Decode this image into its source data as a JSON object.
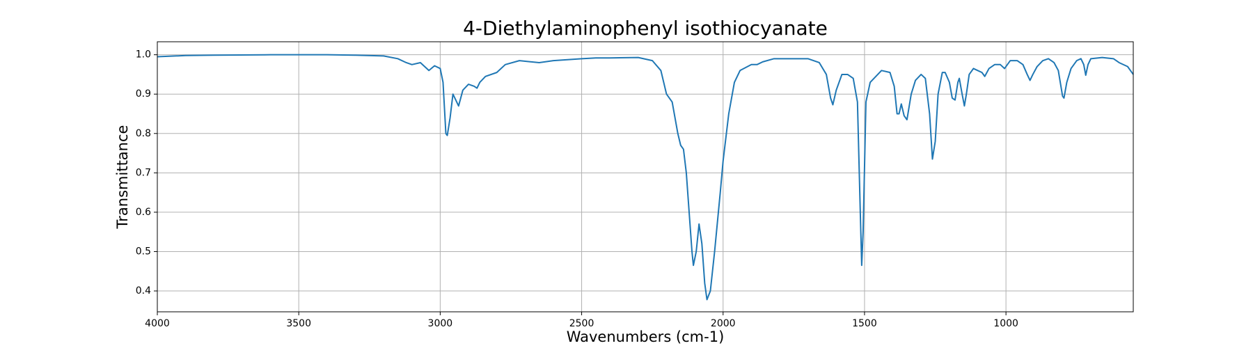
{
  "chart_data": {
    "type": "line",
    "title": "4-Diethylaminophenyl isothiocyanate",
    "xlabel": "Wavenumbers (cm-1)",
    "ylabel": "Transmittance",
    "color": "#1f77b4",
    "grid": true,
    "xlim": [
      4000,
      550
    ],
    "ylim": [
      0.347,
      1.033
    ],
    "xticks": [
      4000,
      3500,
      3000,
      2500,
      2000,
      1500,
      1000
    ],
    "yticks": [
      0.4,
      0.5,
      0.6,
      0.7,
      0.8,
      0.9,
      {
        "value": 1,
        "label": "1.0"
      }
    ],
    "x": [
      4000,
      3900,
      3800,
      3600,
      3400,
      3300,
      3200,
      3150,
      3120,
      3100,
      3070,
      3055,
      3040,
      3020,
      3000,
      2990,
      2980,
      2975,
      2965,
      2955,
      2945,
      2935,
      2920,
      2900,
      2880,
      2870,
      2860,
      2840,
      2800,
      2770,
      2720,
      2650,
      2600,
      2500,
      2450,
      2400,
      2300,
      2250,
      2220,
      2200,
      2180,
      2160,
      2150,
      2140,
      2130,
      2120,
      2110,
      2105,
      2095,
      2085,
      2075,
      2065,
      2057,
      2045,
      2030,
      2010,
      2000,
      1980,
      1960,
      1940,
      1900,
      1880,
      1860,
      1820,
      1750,
      1700,
      1660,
      1635,
      1620,
      1612,
      1600,
      1580,
      1560,
      1540,
      1525,
      1515,
      1510,
      1505,
      1495,
      1480,
      1460,
      1440,
      1410,
      1395,
      1385,
      1378,
      1370,
      1360,
      1350,
      1335,
      1320,
      1300,
      1285,
      1270,
      1260,
      1250,
      1240,
      1225,
      1215,
      1200,
      1190,
      1180,
      1170,
      1165,
      1155,
      1147,
      1140,
      1130,
      1115,
      1100,
      1085,
      1075,
      1060,
      1040,
      1020,
      1005,
      995,
      985,
      960,
      940,
      925,
      915,
      905,
      890,
      870,
      850,
      830,
      815,
      800,
      795,
      785,
      770,
      750,
      735,
      725,
      718,
      710,
      700,
      660,
      620,
      600,
      570,
      550
    ],
    "values": [
      0.995,
      0.998,
      0.999,
      1.0,
      1.0,
      0.999,
      0.997,
      0.99,
      0.98,
      0.975,
      0.98,
      0.97,
      0.96,
      0.972,
      0.965,
      0.93,
      0.8,
      0.795,
      0.84,
      0.9,
      0.885,
      0.87,
      0.91,
      0.925,
      0.92,
      0.915,
      0.93,
      0.945,
      0.955,
      0.975,
      0.985,
      0.98,
      0.985,
      0.99,
      0.992,
      0.992,
      0.993,
      0.985,
      0.96,
      0.9,
      0.88,
      0.8,
      0.77,
      0.76,
      0.7,
      0.6,
      0.5,
      0.465,
      0.5,
      0.57,
      0.52,
      0.42,
      0.378,
      0.4,
      0.5,
      0.65,
      0.73,
      0.85,
      0.93,
      0.96,
      0.975,
      0.975,
      0.982,
      0.99,
      0.99,
      0.99,
      0.98,
      0.95,
      0.89,
      0.873,
      0.91,
      0.95,
      0.95,
      0.94,
      0.88,
      0.6,
      0.465,
      0.55,
      0.88,
      0.93,
      0.945,
      0.96,
      0.955,
      0.92,
      0.85,
      0.85,
      0.875,
      0.845,
      0.835,
      0.9,
      0.935,
      0.95,
      0.94,
      0.85,
      0.735,
      0.78,
      0.9,
      0.955,
      0.955,
      0.93,
      0.89,
      0.885,
      0.93,
      0.94,
      0.9,
      0.87,
      0.9,
      0.95,
      0.965,
      0.96,
      0.955,
      0.945,
      0.965,
      0.975,
      0.975,
      0.965,
      0.975,
      0.985,
      0.985,
      0.975,
      0.95,
      0.935,
      0.95,
      0.97,
      0.985,
      0.99,
      0.98,
      0.96,
      0.895,
      0.89,
      0.93,
      0.965,
      0.985,
      0.99,
      0.975,
      0.948,
      0.975,
      0.99,
      0.993,
      0.99,
      0.98,
      0.97,
      0.95
    ]
  }
}
